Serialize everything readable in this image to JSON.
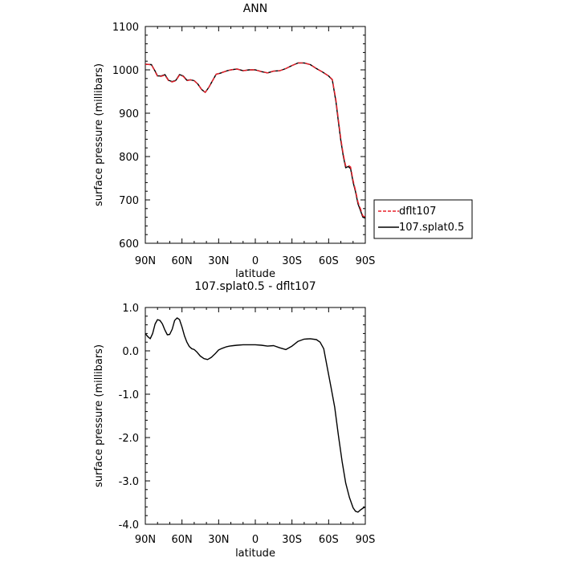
{
  "chart_data": [
    {
      "type": "line",
      "title": "ANN",
      "xlabel": "latitude",
      "ylabel": "surface pressure (millibars)",
      "xticks": [
        {
          "value": 90,
          "label": "90N"
        },
        {
          "value": 60,
          "label": "60N"
        },
        {
          "value": 30,
          "label": "30N"
        },
        {
          "value": 0,
          "label": "0"
        },
        {
          "value": -30,
          "label": "30S"
        },
        {
          "value": -60,
          "label": "60S"
        },
        {
          "value": -90,
          "label": "90S"
        }
      ],
      "xlim": [
        90,
        -90
      ],
      "ylim": [
        600,
        1100
      ],
      "yticks": [
        {
          "value": 600,
          "label": "600"
        },
        {
          "value": 700,
          "label": "700"
        },
        {
          "value": 800,
          "label": "800"
        },
        {
          "value": 900,
          "label": "900"
        },
        {
          "value": 1000,
          "label": "1000"
        },
        {
          "value": 1100,
          "label": "1100"
        }
      ],
      "legend_position": "right",
      "series": [
        {
          "name": "dflt107",
          "color": "#e8202a",
          "dash": "dashed",
          "x": [
            90,
            85,
            82,
            80,
            77,
            74,
            71,
            68,
            65,
            62,
            59,
            56,
            53,
            50,
            47,
            44,
            41,
            38,
            35,
            32,
            29,
            26,
            23,
            20,
            15,
            10,
            5,
            0,
            -5,
            -10,
            -15,
            -20,
            -25,
            -30,
            -35,
            -40,
            -45,
            -50,
            -55,
            -60,
            -63,
            -66,
            -68,
            -70,
            -72,
            -74,
            -76,
            -78,
            -80,
            -82,
            -84,
            -86,
            -88,
            -90
          ],
          "values": [
            1013,
            1012,
            996,
            985,
            985,
            988,
            975,
            972,
            975,
            988,
            985,
            975,
            977,
            975,
            967,
            955,
            948,
            960,
            975,
            990,
            992,
            995,
            998,
            1000,
            1002,
            998,
            1000,
            1000,
            996,
            993,
            997,
            998,
            1003,
            1010,
            1016,
            1016,
            1012,
            1003,
            995,
            986,
            978,
            930,
            885,
            840,
            805,
            778,
            780,
            776,
            745,
            722,
            695,
            680,
            663,
            661
          ]
        },
        {
          "name": "107.splat0.5",
          "color": "#000000",
          "dash": "solid",
          "x": [
            90,
            85,
            82,
            80,
            77,
            74,
            71,
            68,
            65,
            62,
            59,
            56,
            53,
            50,
            47,
            44,
            41,
            38,
            35,
            32,
            29,
            26,
            23,
            20,
            15,
            10,
            5,
            0,
            -5,
            -10,
            -15,
            -20,
            -25,
            -30,
            -35,
            -40,
            -45,
            -50,
            -55,
            -60,
            -63,
            -66,
            -68,
            -70,
            -72,
            -74,
            -76,
            -78,
            -80,
            -82,
            -84,
            -86,
            -88,
            -90
          ],
          "values": [
            1013,
            1012,
            997,
            986,
            986,
            989,
            976,
            973,
            976,
            989,
            986,
            976,
            977,
            975,
            967,
            955,
            948,
            960,
            975,
            990,
            992,
            995,
            998,
            1000,
            1002,
            998,
            1000,
            1000,
            996,
            993,
            997,
            998,
            1003,
            1010,
            1016,
            1016,
            1012,
            1003,
            995,
            986,
            977,
            926,
            880,
            836,
            801,
            774,
            777,
            772,
            741,
            719,
            691,
            676,
            660,
            658
          ]
        }
      ]
    },
    {
      "type": "line",
      "title": "107.splat0.5 - dflt107",
      "xlabel": "latitude",
      "ylabel": "surface pressure (millibars)",
      "xticks": [
        {
          "value": 90,
          "label": "90N"
        },
        {
          "value": 60,
          "label": "60N"
        },
        {
          "value": 30,
          "label": "30N"
        },
        {
          "value": 0,
          "label": "0"
        },
        {
          "value": -30,
          "label": "30S"
        },
        {
          "value": -60,
          "label": "60S"
        },
        {
          "value": -90,
          "label": "90S"
        }
      ],
      "xlim": [
        90,
        -90
      ],
      "ylim": [
        -4.0,
        1.0
      ],
      "yticks": [
        {
          "value": -4.0,
          "label": "-4.0"
        },
        {
          "value": -3.0,
          "label": "-3.0"
        },
        {
          "value": -2.0,
          "label": "-2.0"
        },
        {
          "value": -1.0,
          "label": "-1.0"
        },
        {
          "value": 0.0,
          "label": "0.0"
        },
        {
          "value": 1.0,
          "label": "1.0"
        }
      ],
      "series": [
        {
          "color": "#000000",
          "dash": "solid",
          "x": [
            90,
            88,
            86,
            84,
            82,
            80,
            78,
            76,
            74,
            72,
            70,
            68,
            66,
            64,
            62,
            60,
            58,
            56,
            54,
            52,
            50,
            48,
            45,
            42,
            39,
            36,
            33,
            30,
            27,
            24,
            21,
            18,
            15,
            10,
            5,
            0,
            -5,
            -10,
            -15,
            -20,
            -25,
            -30,
            -35,
            -40,
            -45,
            -50,
            -53,
            -56,
            -59,
            -62,
            -65,
            -68,
            -71,
            -74,
            -77,
            -80,
            -82,
            -84,
            -86,
            -88,
            -90
          ],
          "values": [
            0.4,
            0.33,
            0.28,
            0.4,
            0.62,
            0.72,
            0.7,
            0.62,
            0.48,
            0.37,
            0.38,
            0.5,
            0.7,
            0.76,
            0.72,
            0.55,
            0.35,
            0.2,
            0.1,
            0.05,
            0.03,
            -0.02,
            -0.12,
            -0.18,
            -0.2,
            -0.15,
            -0.07,
            0.02,
            0.06,
            0.09,
            0.11,
            0.12,
            0.13,
            0.14,
            0.14,
            0.14,
            0.13,
            0.11,
            0.12,
            0.07,
            0.03,
            0.11,
            0.22,
            0.27,
            0.28,
            0.26,
            0.2,
            0.05,
            -0.4,
            -0.85,
            -1.3,
            -1.95,
            -2.55,
            -3.05,
            -3.38,
            -3.62,
            -3.7,
            -3.72,
            -3.67,
            -3.63,
            -3.6
          ]
        }
      ]
    }
  ]
}
